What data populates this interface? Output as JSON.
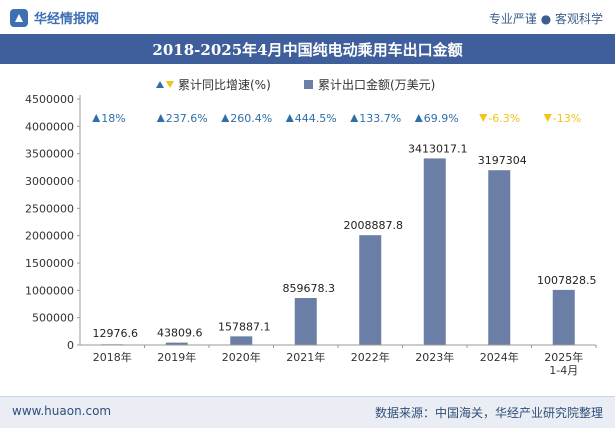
{
  "header": {
    "logo_text": "华经情报网",
    "tagline": "专业严谨 ● 客观科学"
  },
  "footer": {
    "left": "www.huaon.com",
    "right": "数据来源：中国海关，华经产业研究院整理"
  },
  "colors": {
    "bar": "#6b7fa6",
    "up": "#2e6fa8",
    "down": "#f0c419",
    "title_bg": "#3e5f9b"
  },
  "chart_data": {
    "type": "bar",
    "title": "2018-2025年4月中国纯电动乘用车出口金额",
    "categories": [
      "2018年",
      "2019年",
      "2020年",
      "2021年",
      "2022年",
      "2023年",
      "2024年",
      "2025年\n1-4月"
    ],
    "series": [
      {
        "name": "累计出口金额(万美元)",
        "values": [
          12976.6,
          43809.6,
          157887.1,
          859678.3,
          2008887.8,
          3413017.1,
          3197304,
          1007828.5
        ]
      }
    ],
    "value_labels": [
      "12976.6",
      "43809.6",
      "157887.1",
      "859678.3",
      "2008887.8",
      "3413017.1",
      "3197304",
      "1007828.5"
    ],
    "growth": {
      "name": "累计同比增速(%)",
      "labels": [
        "18%",
        "237.6%",
        "260.4%",
        "444.5%",
        "133.7%",
        "69.9%",
        "-6.3%",
        "-13%"
      ],
      "values": [
        18,
        237.6,
        260.4,
        444.5,
        133.7,
        69.9,
        -6.3,
        -13
      ]
    },
    "yticks": [
      "0",
      "500000",
      "1000000",
      "1500000",
      "2000000",
      "2500000",
      "3000000",
      "3500000",
      "4000000",
      "4500000"
    ],
    "ylim": [
      0,
      4500000
    ],
    "legend_position": "top",
    "grid": false
  }
}
